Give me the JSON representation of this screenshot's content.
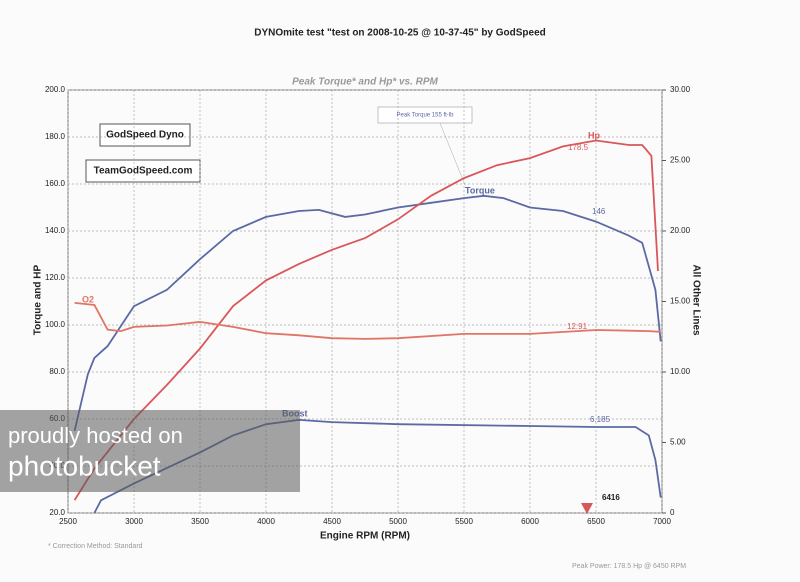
{
  "chart_data": {
    "type": "line",
    "title": "DYNOmite test \"test on 2008-10-25 @ 10-37-45\" by GodSpeed",
    "subtitle": "Peak Torque* and Hp* vs. RPM",
    "x_label": "Engine RPM (RPM)",
    "y_label": "Torque and HP",
    "y2_label": "All Other Lines",
    "xlim": [
      2500,
      7000
    ],
    "xticks": [
      2500,
      3000,
      3500,
      4000,
      4500,
      5000,
      5500,
      6000,
      6500,
      7000
    ],
    "ylim": [
      20,
      200
    ],
    "yticks": [
      {
        "value": 20,
        "label": "20.0"
      },
      {
        "value": 40,
        "label": "40.0"
      },
      {
        "value": 60,
        "label": "60.0"
      },
      {
        "value": 80,
        "label": "80.0"
      },
      {
        "value": 100,
        "label": "100.0"
      },
      {
        "value": 120,
        "label": "120.0"
      },
      {
        "value": 140,
        "label": "140.0"
      },
      {
        "value": 160,
        "label": "160.0"
      },
      {
        "value": 180,
        "label": "180.0"
      },
      {
        "value": 200,
        "label": "200.0"
      }
    ],
    "y2lim": [
      0,
      30
    ],
    "y2ticks": [
      {
        "value": 0,
        "label": "0"
      },
      {
        "value": 5,
        "label": "5.00"
      },
      {
        "value": 10,
        "label": "10.00"
      },
      {
        "value": 15,
        "label": "15.00"
      },
      {
        "value": 20,
        "label": "20.00"
      },
      {
        "value": 25,
        "label": "25.00"
      },
      {
        "value": 30,
        "label": "30.00"
      }
    ],
    "grid": true,
    "series": [
      {
        "name": "Torque",
        "color": "#5b6aa3",
        "x": [
          2550,
          2650,
          2700,
          2800,
          3000,
          3250,
          3500,
          3750,
          4000,
          4250,
          4400,
          4600,
          4750,
          5000,
          5250,
          5500,
          5650,
          5800,
          6000,
          6250,
          6500,
          6750,
          6850,
          6950,
          6990
        ],
        "values": [
          55,
          79,
          86,
          91,
          108,
          115,
          128,
          140,
          146,
          148.5,
          149,
          146,
          147,
          150,
          152,
          154,
          155,
          154,
          150,
          148.5,
          144,
          138,
          135,
          115,
          93
        ]
      },
      {
        "name": "Hp",
        "color": "#d9575a",
        "x": [
          2550,
          2700,
          3000,
          3250,
          3500,
          3750,
          4000,
          4250,
          4500,
          4750,
          5000,
          5250,
          5500,
          5750,
          6000,
          6250,
          6500,
          6750,
          6850,
          6920,
          6970
        ],
        "values": [
          25.5,
          39,
          60,
          74.5,
          90,
          108,
          119,
          126,
          132,
          137,
          145,
          155,
          162.5,
          168,
          171,
          176,
          178.5,
          176.6,
          176.6,
          172,
          123
        ]
      },
      {
        "name": "O2",
        "color": "#e07565",
        "axis": "y2",
        "x": [
          2550,
          2700,
          2800,
          2900,
          3000,
          3250,
          3500,
          3750,
          4000,
          4250,
          4500,
          4750,
          5000,
          5500,
          6000,
          6500,
          6900,
          6990
        ],
        "values": [
          14.9,
          14.75,
          13,
          12.9,
          13.2,
          13.3,
          13.55,
          13.2,
          12.75,
          12.6,
          12.4,
          12.35,
          12.4,
          12.7,
          12.7,
          12.98,
          12.9,
          12.85
        ]
      },
      {
        "name": "Boost",
        "color": "#5b6aa3",
        "axis": "y2",
        "x": [
          2700,
          2750,
          3000,
          3500,
          3750,
          4000,
          4250,
          4500,
          5000,
          6000,
          6500,
          6800,
          6900,
          6950,
          6990
        ],
        "values": [
          0,
          0.9,
          2.1,
          4.3,
          5.5,
          6.3,
          6.6,
          6.45,
          6.3,
          6.17,
          6.1,
          6.1,
          5.5,
          3.76,
          1.1
        ]
      }
    ],
    "annotations": [
      "Peak Torque 155 ft-lb",
      "178.5",
      "146",
      "12.91",
      "6.185",
      "6416",
      "GodSpeed Dyno",
      "TeamGodSpeed.com",
      "* Correction Method: Standard",
      "Peak Power: 178.5 Hp @ 6450 RPM",
      "proudly hosted on",
      "photobucket"
    ]
  }
}
